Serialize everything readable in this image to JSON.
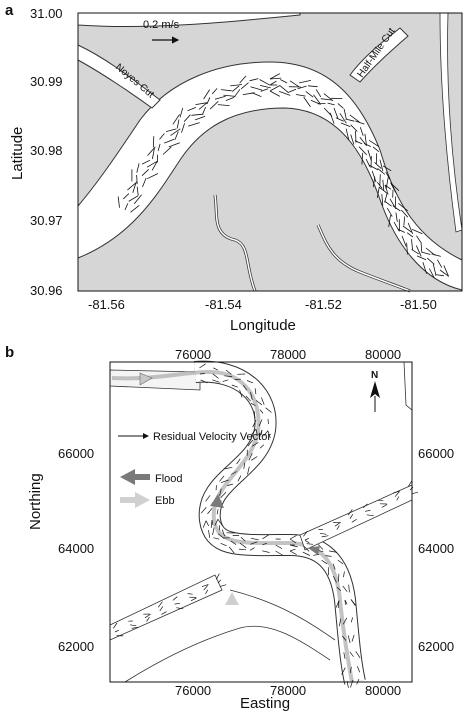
{
  "panels": {
    "a": {
      "label": "a",
      "xlabel": "Longitude",
      "ylabel": "Latitude",
      "x_ticks": [
        "-81.56",
        "-81.54",
        "-81.52",
        "-81.50"
      ],
      "y_ticks": [
        "31.00",
        "30.99",
        "30.98",
        "30.97",
        "30.96"
      ],
      "scale_label": "0.2 m/s",
      "creek_labels": [
        "Noyes Cut",
        "Half-Mile Cut"
      ]
    },
    "b": {
      "label": "b",
      "xlabel": "Easting",
      "ylabel": "Northing",
      "x_ticks": [
        "76000",
        "78000",
        "80000"
      ],
      "y_ticks": [
        "66000",
        "64000",
        "62000"
      ],
      "north_label": "N",
      "legend": {
        "residual": "Residual Velocity Vector",
        "flood": "Flood",
        "ebb": "Ebb"
      }
    }
  },
  "colors": {
    "land": "#d6d6d6",
    "water": "#ffffff",
    "vector": "#111111",
    "flood_arrow": "#7a7a7a",
    "ebb_arrow": "#c8c8c8"
  }
}
